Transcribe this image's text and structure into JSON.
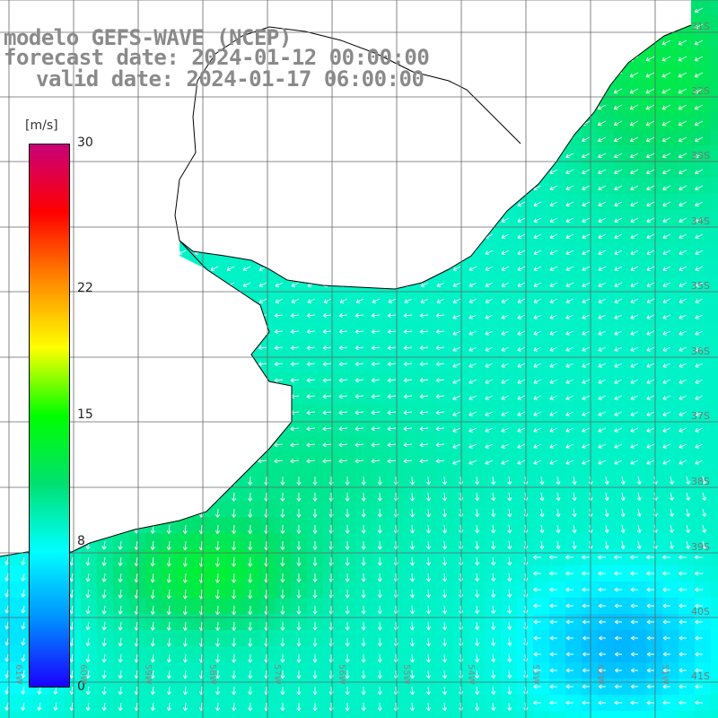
{
  "title": {
    "line1": "modelo GEFS-WAVE (NCEP)",
    "line2": "forecast date: 2024-01-12 00:00:00",
    "line3": "valid date: 2024-01-17 06:00:00"
  },
  "colorbar": {
    "unit": "[m/s]",
    "ticks": [
      "30",
      "22",
      "15",
      "8",
      "0"
    ],
    "tick_values": [
      30,
      22,
      15,
      8,
      0
    ],
    "min": 0,
    "max": 30,
    "colors": [
      "#1a00ff",
      "#0090ff",
      "#00ffff",
      "#00e070",
      "#00ff00",
      "#ffff00",
      "#ff8800",
      "#ff0000",
      "#c8007a"
    ]
  },
  "lat_labels": [
    "31S",
    "32S",
    "33S",
    "34S",
    "35S",
    "36S",
    "37S",
    "38S",
    "39S",
    "40S",
    "41S"
  ],
  "lon_labels": [
    "61W",
    "60W",
    "59W",
    "58W",
    "57W",
    "56W",
    "55W",
    "54W",
    "53W",
    "52W",
    "51W"
  ],
  "colors": {
    "land": "#ffffff",
    "grid": "#666666",
    "coast": "#000000",
    "arrows": "#ffffff",
    "title": "#8a8a8a"
  }
}
